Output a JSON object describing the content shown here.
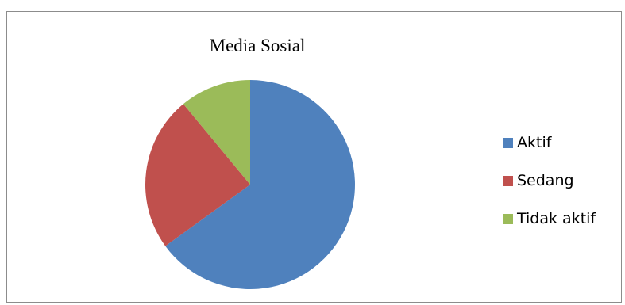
{
  "chart_data": {
    "type": "pie",
    "title": "Media Sosial",
    "categories": [
      "Aktif",
      "Sedang",
      "Tidak aktif"
    ],
    "values": [
      65,
      24,
      11
    ],
    "colors": [
      "#4f81bd",
      "#c0504d",
      "#9bbb59"
    ],
    "legend_position": "right",
    "start_angle_deg": 0,
    "direction": "clockwise"
  }
}
